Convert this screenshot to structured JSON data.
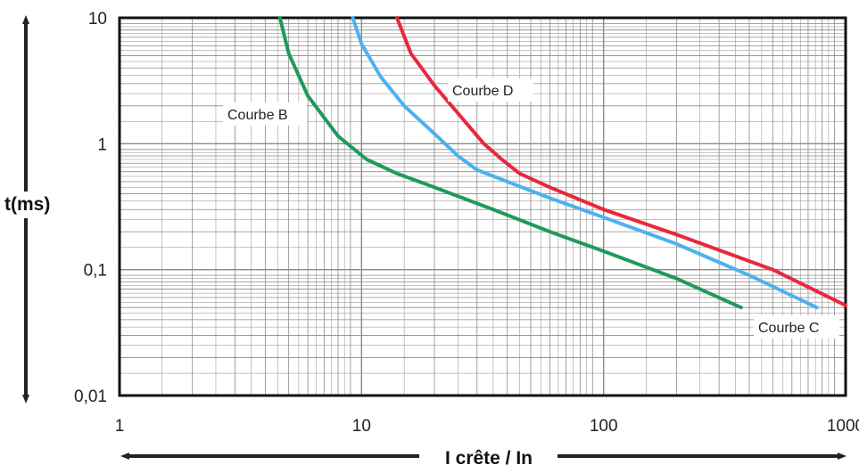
{
  "chart_data": {
    "type": "line",
    "title": "",
    "xlabel": "I crête / In",
    "ylabel": "t(ms)",
    "xscale": "log",
    "yscale": "log",
    "xlim": [
      1,
      1000
    ],
    "ylim": [
      0.01,
      10
    ],
    "grid": true,
    "x_ticks": [
      1,
      10,
      100,
      1000
    ],
    "x_tick_labels": [
      "1",
      "10",
      "100",
      "1000"
    ],
    "y_ticks": [
      0.01,
      0.1,
      1,
      10
    ],
    "y_tick_labels": [
      "0,01",
      "0,1",
      "1",
      "10"
    ],
    "series": [
      {
        "name": "Courbe B",
        "color": "#1e9a5a",
        "points": [
          [
            4.6,
            10
          ],
          [
            5.0,
            5.2
          ],
          [
            6.0,
            2.4
          ],
          [
            8.0,
            1.15
          ],
          [
            10.5,
            0.75
          ],
          [
            14.0,
            0.58
          ],
          [
            20.0,
            0.45
          ],
          [
            35.0,
            0.3
          ],
          [
            60.0,
            0.2
          ],
          [
            100.0,
            0.14
          ],
          [
            200.0,
            0.085
          ],
          [
            370.0,
            0.05
          ]
        ]
      },
      {
        "name": "Courbe C",
        "color": "#4db1ee",
        "points": [
          [
            9.2,
            10
          ],
          [
            10.0,
            6.2
          ],
          [
            12.0,
            3.4
          ],
          [
            15.0,
            2.0
          ],
          [
            20.0,
            1.2
          ],
          [
            25.0,
            0.8
          ],
          [
            30.0,
            0.62
          ],
          [
            40.0,
            0.5
          ],
          [
            60.0,
            0.37
          ],
          [
            100.0,
            0.26
          ],
          [
            200.0,
            0.16
          ],
          [
            400.0,
            0.09
          ],
          [
            760.0,
            0.05
          ]
        ]
      },
      {
        "name": "Courbe D",
        "color": "#e8283c",
        "points": [
          [
            14.0,
            10
          ],
          [
            16.0,
            5.2
          ],
          [
            20.0,
            2.9
          ],
          [
            26.0,
            1.6
          ],
          [
            32.0,
            1.0
          ],
          [
            38.0,
            0.75
          ],
          [
            45.0,
            0.58
          ],
          [
            60.0,
            0.45
          ],
          [
            100.0,
            0.3
          ],
          [
            200.0,
            0.19
          ],
          [
            500.0,
            0.1
          ],
          [
            1000.0,
            0.052
          ]
        ]
      }
    ],
    "labels": {
      "courbe_b": "Courbe B",
      "courbe_c": "Courbe C",
      "courbe_d": "Courbe D"
    }
  }
}
